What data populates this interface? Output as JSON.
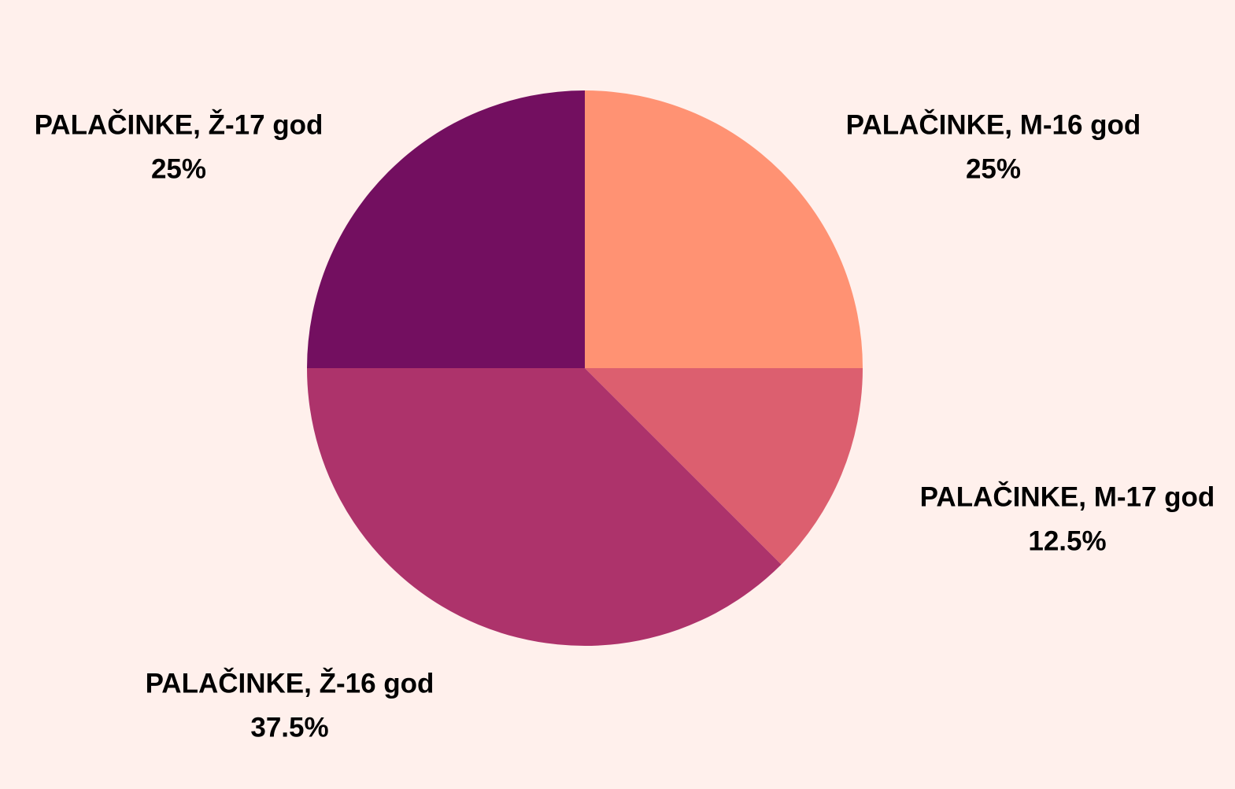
{
  "chart_data": {
    "type": "pie",
    "categories": [
      "PALAČINKE, M-16 god",
      "PALAČINKE, M-17 god",
      "PALAČINKE, Ž-16 god",
      "PALAČINKE, Ž-17 god"
    ],
    "values": [
      25,
      12.5,
      37.5,
      25
    ],
    "value_labels": [
      "25%",
      "12.5%",
      "37.5%",
      "25%"
    ],
    "colors": [
      "#ff9273",
      "#dc5f6f",
      "#ad336b",
      "#730f60"
    ]
  }
}
